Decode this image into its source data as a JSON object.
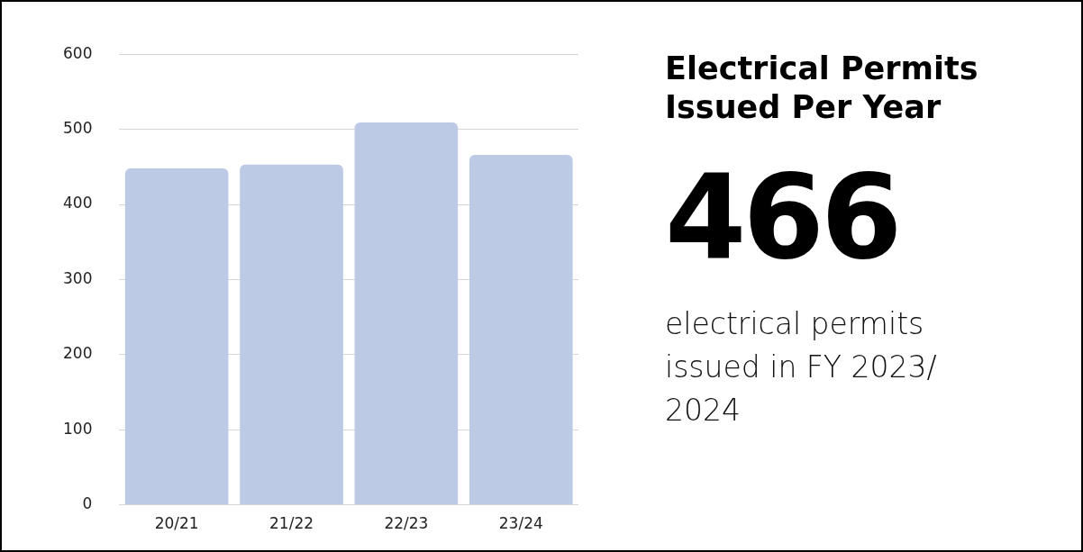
{
  "chart_data": {
    "type": "bar",
    "title": "Electrical Permits Issued Per Year",
    "categories": [
      "20/21",
      "21/22",
      "22/23",
      "23/24"
    ],
    "values": [
      448,
      453,
      509,
      466
    ],
    "color": "#bccae6",
    "ylim": [
      0,
      600
    ],
    "yticks": [
      0,
      100,
      200,
      300,
      400,
      500,
      600
    ],
    "grid": "y",
    "legend": false,
    "annotations": [
      "466",
      "electrical permits issued in FY 2023/ 2024"
    ]
  }
}
